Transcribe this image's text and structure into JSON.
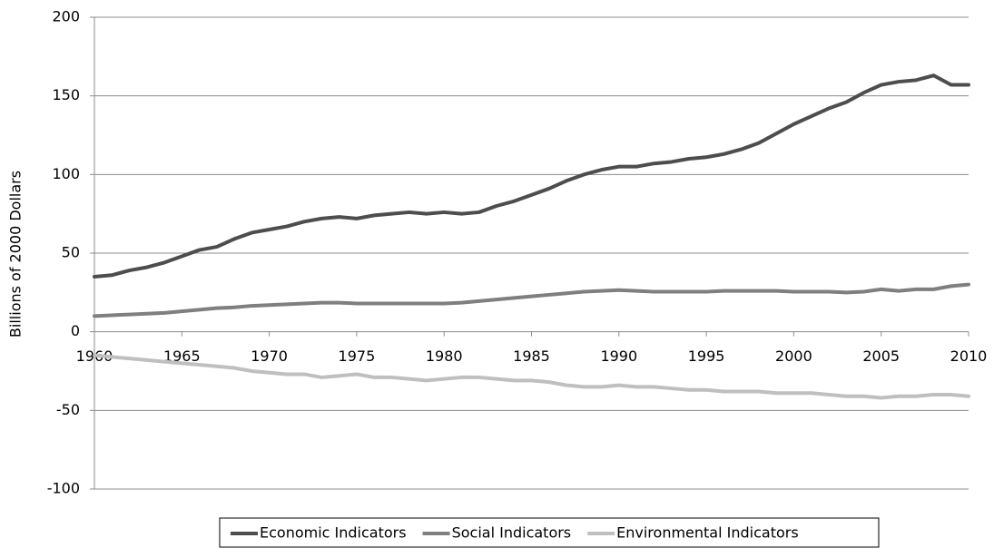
{
  "chart_data": {
    "type": "line",
    "y_label": "Billions of 2000 Dollars",
    "x": [
      1960,
      1961,
      1962,
      1963,
      1964,
      1965,
      1966,
      1967,
      1968,
      1969,
      1970,
      1971,
      1972,
      1973,
      1974,
      1975,
      1976,
      1977,
      1978,
      1979,
      1980,
      1981,
      1982,
      1983,
      1984,
      1985,
      1986,
      1987,
      1988,
      1989,
      1990,
      1991,
      1992,
      1993,
      1994,
      1995,
      1996,
      1997,
      1998,
      1999,
      2000,
      2001,
      2002,
      2003,
      2004,
      2005,
      2006,
      2007,
      2008,
      2009,
      2010
    ],
    "series": [
      {
        "name": "Economic Indicators",
        "color": "#4d4d4d",
        "values": [
          35,
          36,
          39,
          41,
          44,
          48,
          52,
          54,
          59,
          63,
          65,
          67,
          70,
          72,
          73,
          72,
          74,
          75,
          76,
          75,
          76,
          75,
          76,
          80,
          83,
          87,
          91,
          96,
          100,
          103,
          105,
          105,
          107,
          108,
          110,
          111,
          113,
          116,
          120,
          126,
          132,
          137,
          142,
          146,
          152,
          157,
          159,
          160,
          163,
          157,
          157
        ]
      },
      {
        "name": "Social Indicators",
        "color": "#7f7f7f",
        "values": [
          10,
          10.5,
          11,
          11.5,
          12,
          13,
          14,
          15,
          15.5,
          16.5,
          17,
          17.5,
          18,
          18.5,
          18.5,
          18,
          18,
          18,
          18,
          18,
          18,
          18.5,
          19.5,
          20.5,
          21.5,
          22.5,
          23.5,
          24.5,
          25.5,
          26,
          26.5,
          26,
          25.5,
          25.5,
          25.5,
          25.5,
          26,
          26,
          26,
          26,
          25.5,
          25.5,
          25.5,
          25,
          25.5,
          27,
          26,
          27,
          27,
          29,
          30
        ]
      },
      {
        "name": "Environmental Indicators",
        "color": "#bfbfbf",
        "values": [
          -15,
          -16,
          -17,
          -18,
          -19,
          -20,
          -21,
          -22,
          -23,
          -25,
          -26,
          -27,
          -27,
          -29,
          -28,
          -27,
          -29,
          -29,
          -30,
          -31,
          -30,
          -29,
          -29,
          -30,
          -31,
          -31,
          -32,
          -34,
          -35,
          -35,
          -34,
          -35,
          -35,
          -36,
          -37,
          -37,
          -38,
          -38,
          -38,
          -39,
          -39,
          -39,
          -40,
          -41,
          -41,
          -42,
          -41,
          -41,
          -40,
          -40,
          -41
        ]
      }
    ],
    "xlim": [
      1960,
      2010
    ],
    "xticks": [
      1960,
      1965,
      1970,
      1975,
      1980,
      1985,
      1990,
      1995,
      2000,
      2005,
      2010
    ],
    "ylim": [
      -100,
      200
    ],
    "yticks": [
      -100,
      -50,
      0,
      50,
      100,
      150,
      200
    ],
    "grid": true,
    "legend": "bottom"
  }
}
